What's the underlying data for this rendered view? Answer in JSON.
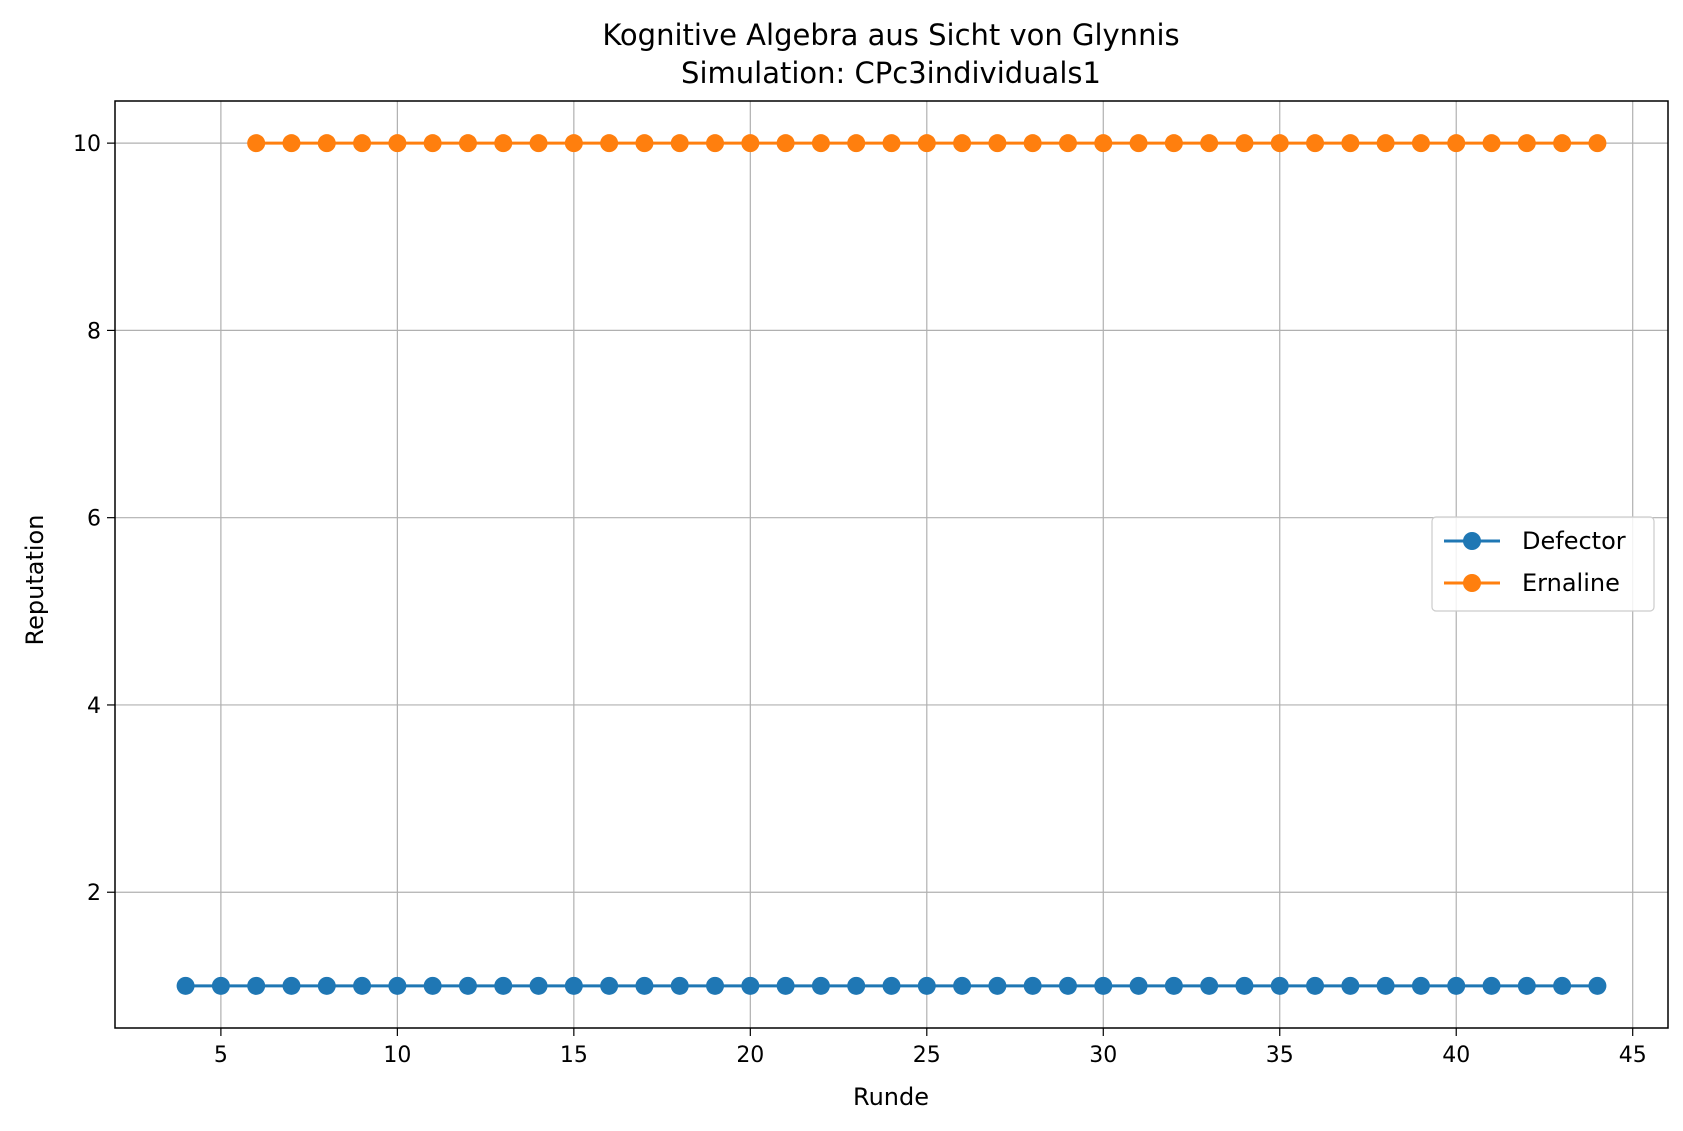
{
  "chart_data": {
    "type": "line",
    "title": "Kognitive Algebra aus Sicht von Glynnis",
    "subtitle": "Simulation: CPc3individuals1",
    "xlabel": "Runde",
    "ylabel": "Reputation",
    "xlim": [
      2,
      46
    ],
    "ylim": [
      0.55,
      10.45
    ],
    "xticks": [
      5,
      10,
      15,
      20,
      25,
      30,
      35,
      40,
      45
    ],
    "yticks": [
      2,
      4,
      6,
      8,
      10
    ],
    "grid": true,
    "legend_position": "center-right",
    "series": [
      {
        "name": "Defector",
        "color": "#1f77b4",
        "marker": "circle",
        "x": [
          4,
          5,
          6,
          7,
          8,
          9,
          10,
          11,
          12,
          13,
          14,
          15,
          16,
          17,
          18,
          19,
          20,
          21,
          22,
          23,
          24,
          25,
          26,
          27,
          28,
          29,
          30,
          31,
          32,
          33,
          34,
          35,
          36,
          37,
          38,
          39,
          40,
          41,
          42,
          43,
          44
        ],
        "y": [
          1,
          1,
          1,
          1,
          1,
          1,
          1,
          1,
          1,
          1,
          1,
          1,
          1,
          1,
          1,
          1,
          1,
          1,
          1,
          1,
          1,
          1,
          1,
          1,
          1,
          1,
          1,
          1,
          1,
          1,
          1,
          1,
          1,
          1,
          1,
          1,
          1,
          1,
          1,
          1,
          1
        ]
      },
      {
        "name": "Ernaline",
        "color": "#ff7f0e",
        "marker": "circle",
        "x": [
          6,
          7,
          8,
          9,
          10,
          11,
          12,
          13,
          14,
          15,
          16,
          17,
          18,
          19,
          20,
          21,
          22,
          23,
          24,
          25,
          26,
          27,
          28,
          29,
          30,
          31,
          32,
          33,
          34,
          35,
          36,
          37,
          38,
          39,
          40,
          41,
          42,
          43,
          44
        ],
        "y": [
          10,
          10,
          10,
          10,
          10,
          10,
          10,
          10,
          10,
          10,
          10,
          10,
          10,
          10,
          10,
          10,
          10,
          10,
          10,
          10,
          10,
          10,
          10,
          10,
          10,
          10,
          10,
          10,
          10,
          10,
          10,
          10,
          10,
          10,
          10,
          10,
          10,
          10,
          10
        ]
      }
    ]
  }
}
